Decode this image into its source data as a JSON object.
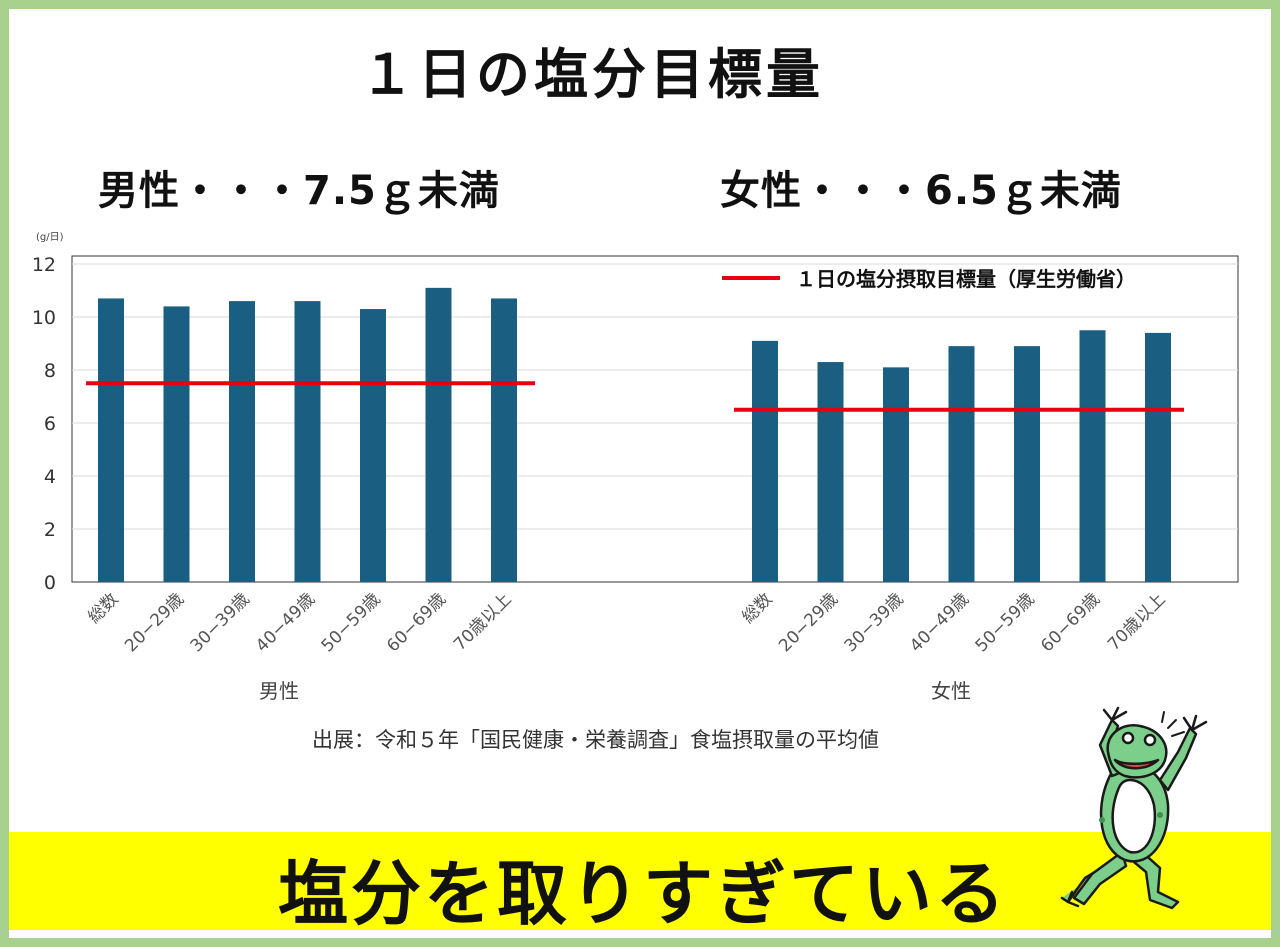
{
  "title": "１日の塩分目標量",
  "goals": {
    "male": "男性・・・7.5ｇ未満",
    "female": "女性・・・6.5ｇ未満"
  },
  "unit": "(g/日)",
  "source": "出展：令和５年「国民健康・栄養調査」食塩摂取量の平均値",
  "banner": "塩分を取りすぎている",
  "colors": {
    "frame": "#a9d18e",
    "bar": "#1a5e82",
    "target_line": "#e60012",
    "banner": "#ffff00"
  },
  "chart_data": {
    "type": "bar",
    "ylim": [
      0,
      12
    ],
    "yticks": [
      0,
      2,
      4,
      6,
      8,
      10,
      12
    ],
    "grid": true,
    "legend": {
      "position": "top-right",
      "label": "１日の塩分摂取目標量（厚生労働省）"
    },
    "groups": [
      {
        "name": "男性",
        "categories": [
          "総数",
          "20−29歳",
          "30−39歳",
          "40−49歳",
          "50−59歳",
          "60−69歳",
          "70歳以上"
        ],
        "values": [
          10.7,
          10.4,
          10.6,
          10.6,
          10.3,
          11.1,
          10.7
        ],
        "target": 7.5
      },
      {
        "name": "女性",
        "categories": [
          "総数",
          "20−29歳",
          "30−39歳",
          "40−49歳",
          "50−59歳",
          "60−69歳",
          "70歳以上"
        ],
        "values": [
          9.1,
          8.3,
          8.1,
          8.9,
          8.9,
          9.5,
          9.4
        ],
        "target": 6.5
      }
    ]
  }
}
